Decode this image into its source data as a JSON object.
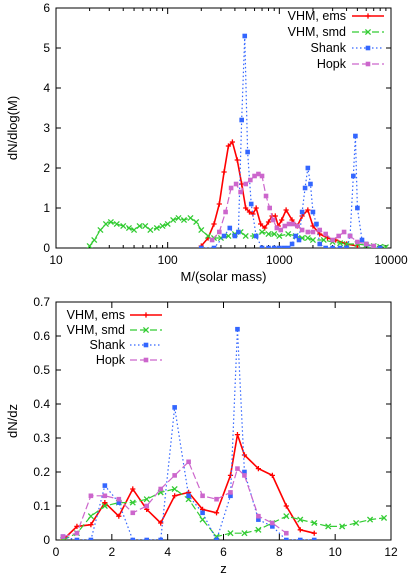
{
  "chart_data": [
    {
      "type": "line",
      "xlabel": "M/(solar mass)",
      "ylabel": "dN/dlog(M)",
      "xscale": "log",
      "xlim": [
        10,
        10000
      ],
      "ylim": [
        0,
        6
      ],
      "xticks": [
        10,
        100,
        1000,
        10000
      ],
      "xtick_labels": [
        "10",
        "100",
        "1000",
        "10000"
      ],
      "yticks": [
        0,
        1,
        2,
        3,
        4,
        5,
        6
      ],
      "ytick_labels": [
        "0",
        "1",
        "2",
        "3",
        "4",
        "5",
        "6"
      ],
      "grid": false,
      "legend_position": "top-right",
      "series": [
        {
          "name": "VHM, ems",
          "color": "#ff0000",
          "style": "solid",
          "marker": "plus",
          "x": [
            200,
            230,
            260,
            290,
            320,
            350,
            380,
            420,
            460,
            500,
            540,
            580,
            620,
            680,
            740,
            800,
            860,
            920,
            980,
            1050,
            1150,
            1300,
            1450,
            1600,
            1800,
            2000,
            2300,
            2700,
            3200,
            4000,
            5000
          ],
          "y": [
            0.05,
            0.25,
            0.6,
            1.1,
            1.9,
            2.55,
            2.65,
            2.2,
            1.6,
            1.0,
            0.9,
            0.85,
            1.0,
            0.6,
            0.5,
            0.65,
            0.8,
            0.8,
            0.55,
            0.7,
            0.95,
            0.7,
            0.55,
            0.8,
            0.95,
            0.55,
            0.35,
            0.25,
            0.2,
            0.1,
            0.05
          ]
        },
        {
          "name": "VHM, smd",
          "color": "#33cc33",
          "style": "dashed",
          "marker": "x",
          "x": [
            20,
            22,
            25,
            28,
            31,
            35,
            40,
            45,
            50,
            56,
            63,
            70,
            80,
            90,
            100,
            112,
            125,
            140,
            160,
            180,
            200,
            230,
            260,
            300,
            350,
            400,
            450,
            500,
            600,
            700,
            800,
            900,
            1000,
            1200,
            1400,
            1600,
            1800,
            2000,
            2500,
            3000,
            3500,
            4000,
            5000,
            6000,
            7000,
            8000,
            9000
          ],
          "y": [
            0.05,
            0.2,
            0.45,
            0.6,
            0.65,
            0.6,
            0.55,
            0.5,
            0.45,
            0.55,
            0.55,
            0.45,
            0.5,
            0.55,
            0.6,
            0.7,
            0.75,
            0.7,
            0.75,
            0.65,
            0.45,
            0.3,
            0.25,
            0.25,
            0.3,
            0.35,
            0.4,
            0.3,
            0.3,
            0.4,
            0.35,
            0.35,
            0.3,
            0.35,
            0.3,
            0.25,
            0.25,
            0.2,
            0.2,
            0.15,
            0.12,
            0.1,
            0.1,
            0.07,
            0.05,
            0.03,
            0.02
          ]
        },
        {
          "name": "Shank",
          "color": "#3366ff",
          "style": "dotted",
          "marker": "square",
          "x": [
            200,
            260,
            320,
            360,
            400,
            430,
            460,
            490,
            520,
            560,
            620,
            700,
            800,
            900,
            1000,
            1100,
            1200,
            1300,
            1400,
            1500,
            1600,
            1700,
            1800,
            1900,
            2000,
            2150,
            2300,
            2600,
            3000,
            3500,
            4000,
            4300,
            4600,
            4800,
            5000,
            5500,
            6000,
            7000,
            8000
          ],
          "y": [
            0,
            0,
            0.3,
            0.5,
            0.3,
            0.4,
            3.2,
            5.3,
            2.4,
            1.1,
            0.3,
            0,
            0,
            0,
            0,
            0,
            0,
            0.1,
            0.3,
            0.2,
            0.9,
            1.5,
            2.0,
            1.6,
            0.9,
            0.6,
            0.1,
            0,
            0,
            0,
            0,
            0.3,
            1.8,
            2.8,
            1.0,
            0.2,
            0.1,
            0,
            0
          ]
        },
        {
          "name": "Hopk",
          "color": "#cc66cc",
          "style": "dashed",
          "marker": "square",
          "x": [
            250,
            290,
            330,
            370,
            410,
            450,
            500,
            550,
            600,
            650,
            700,
            760,
            820,
            880,
            950,
            1030,
            1120,
            1220,
            1330,
            1450,
            1600,
            1800,
            2000,
            2300,
            2600,
            3000,
            3400,
            3800,
            4300,
            5000,
            6000,
            7000
          ],
          "y": [
            0.2,
            0.4,
            0.9,
            1.5,
            1.6,
            1.4,
            1.6,
            1.7,
            1.8,
            1.85,
            1.8,
            1.3,
            1.0,
            0.7,
            0.5,
            0.45,
            0.55,
            0.6,
            0.6,
            0.55,
            0.45,
            0.4,
            0.4,
            0.45,
            0.35,
            0.2,
            0.3,
            0.4,
            0.3,
            0.15,
            0.1,
            0.05
          ]
        }
      ]
    },
    {
      "type": "line",
      "xlabel": "z",
      "ylabel": "dN/dz",
      "xlim": [
        0,
        12
      ],
      "ylim": [
        0,
        0.7
      ],
      "xticks": [
        0,
        2,
        4,
        6,
        8,
        10,
        12
      ],
      "xtick_labels": [
        "0",
        "2",
        "4",
        "6",
        "8",
        "10",
        "12"
      ],
      "yticks": [
        0,
        0.1,
        0.2,
        0.3,
        0.4,
        0.5,
        0.6,
        0.7
      ],
      "ytick_labels": [
        "0",
        "0.1",
        "0.2",
        "0.3",
        "0.4",
        "0.5",
        "0.6",
        "0.7"
      ],
      "grid": false,
      "legend_position": "top-left",
      "series": [
        {
          "name": "VHM, ems",
          "color": "#ff0000",
          "style": "solid",
          "marker": "plus",
          "x": [
            0.25,
            0.75,
            1.25,
            1.75,
            2.25,
            2.75,
            3.25,
            3.75,
            4.25,
            4.75,
            5.25,
            5.75,
            6.25,
            6.5,
            6.75,
            7.25,
            7.75,
            8.25,
            8.75,
            9.25
          ],
          "y": [
            0.0,
            0.04,
            0.045,
            0.11,
            0.07,
            0.15,
            0.09,
            0.05,
            0.13,
            0.14,
            0.09,
            0.08,
            0.19,
            0.31,
            0.25,
            0.21,
            0.19,
            0.1,
            0.03,
            0.02
          ]
        },
        {
          "name": "VHM, smd",
          "color": "#33cc33",
          "style": "dashed",
          "marker": "x",
          "x": [
            0.25,
            0.75,
            1.25,
            1.75,
            2.25,
            2.75,
            3.25,
            3.75,
            4.25,
            4.75,
            5.25,
            5.75,
            6.25,
            6.75,
            7.25,
            7.75,
            8.25,
            8.75,
            9.25,
            9.75,
            10.25,
            10.75,
            11.25,
            11.75
          ],
          "y": [
            0.0,
            0.02,
            0.07,
            0.1,
            0.11,
            0.11,
            0.12,
            0.14,
            0.15,
            0.12,
            0.06,
            0.01,
            0.02,
            0.02,
            0.03,
            0.05,
            0.07,
            0.06,
            0.05,
            0.04,
            0.04,
            0.05,
            0.06,
            0.065
          ]
        },
        {
          "name": "Shank",
          "color": "#3366ff",
          "style": "dotted",
          "marker": "square",
          "x": [
            0.25,
            0.75,
            1.25,
            1.75,
            2.25,
            2.75,
            3.25,
            3.75,
            4.25,
            4.75,
            5.25,
            5.75,
            6.25,
            6.5,
            6.75,
            7.25,
            7.75,
            8.25,
            8.75,
            9.25
          ],
          "y": [
            0.01,
            0.0,
            0.0,
            0.16,
            0.11,
            0.0,
            0.0,
            0.0,
            0.39,
            0.13,
            0.08,
            0.0,
            0.13,
            0.62,
            0.2,
            0.06,
            0.04,
            0.0,
            0.0,
            0.0
          ]
        },
        {
          "name": "Hopk",
          "color": "#cc66cc",
          "style": "dashed",
          "marker": "square",
          "x": [
            0.25,
            0.75,
            1.25,
            1.75,
            2.25,
            2.75,
            3.25,
            3.75,
            4.25,
            4.75,
            5.25,
            5.75,
            6.25,
            6.5,
            6.75,
            7.25,
            7.75,
            8.25
          ],
          "y": [
            0.01,
            0.02,
            0.13,
            0.13,
            0.12,
            0.08,
            0.1,
            0.15,
            0.19,
            0.23,
            0.13,
            0.12,
            0.14,
            0.21,
            0.19,
            0.07,
            0.05,
            0.02
          ]
        }
      ]
    }
  ]
}
